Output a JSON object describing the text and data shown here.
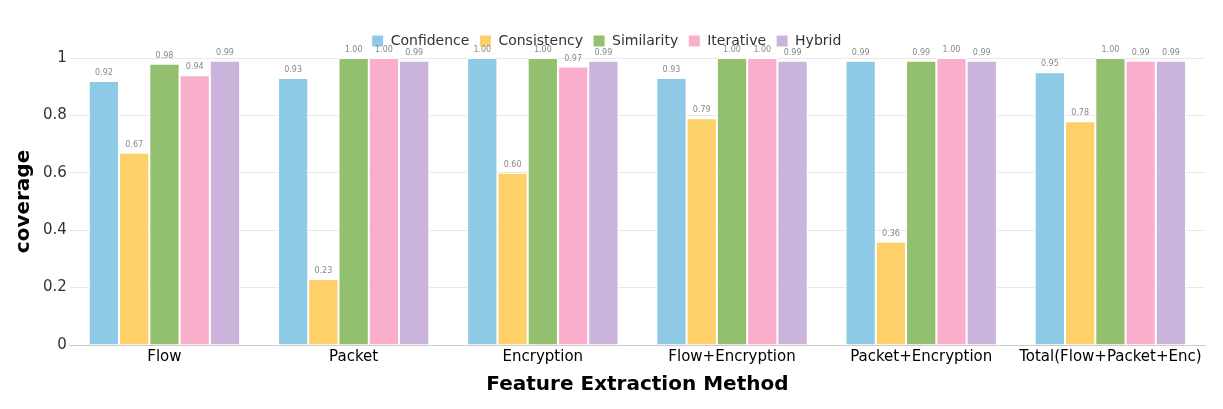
{
  "chart_data": {
    "type": "bar",
    "xlabel": "Feature Extraction Method",
    "ylabel": "coverage",
    "categories": [
      "Flow",
      "Packet",
      "Encryption",
      "Flow+Encryption",
      "Packet+Encryption",
      "Total(Flow+Packet+Enc)"
    ],
    "series": [
      {
        "name": "Confidence",
        "color": "#8ecae6",
        "values": [
          0.92,
          0.93,
          1.0,
          0.93,
          0.99,
          0.95
        ],
        "value_labels": [
          "0.92",
          "0.93",
          "1.00",
          "0.93",
          "0.99",
          "0.95"
        ]
      },
      {
        "name": "Consistency",
        "color": "#fdd06a",
        "values": [
          0.67,
          0.23,
          0.6,
          0.79,
          0.36,
          0.78
        ],
        "value_labels": [
          "0.67",
          "0.23",
          "0.60",
          "0.79",
          "0.36",
          "0.78"
        ]
      },
      {
        "name": "Similarity",
        "color": "#93c06e",
        "values": [
          0.98,
          1.0,
          1.0,
          1.0,
          0.99,
          1.0
        ],
        "value_labels": [
          "0.98",
          "1.00",
          "1.00",
          "1.00",
          "0.99",
          "1.00"
        ]
      },
      {
        "name": "Iterative",
        "color": "#f9afcb",
        "values": [
          0.94,
          1.0,
          0.97,
          1.0,
          1.0,
          0.99
        ],
        "value_labels": [
          "0.94",
          "1.00",
          "0.97",
          "1.00",
          "1.00",
          "0.99"
        ]
      },
      {
        "name": "Hybrid",
        "color": "#cab4dc",
        "values": [
          0.99,
          0.99,
          0.99,
          0.99,
          0.99,
          0.99
        ],
        "value_labels": [
          "0.99",
          "0.99",
          "0.99",
          "0.99",
          "0.99",
          "0.99"
        ]
      }
    ],
    "ylim": [
      0,
      1
    ],
    "yticks": [
      0,
      0.2,
      0.4,
      0.6,
      0.8,
      1
    ],
    "grid": "y",
    "legend": "top"
  }
}
